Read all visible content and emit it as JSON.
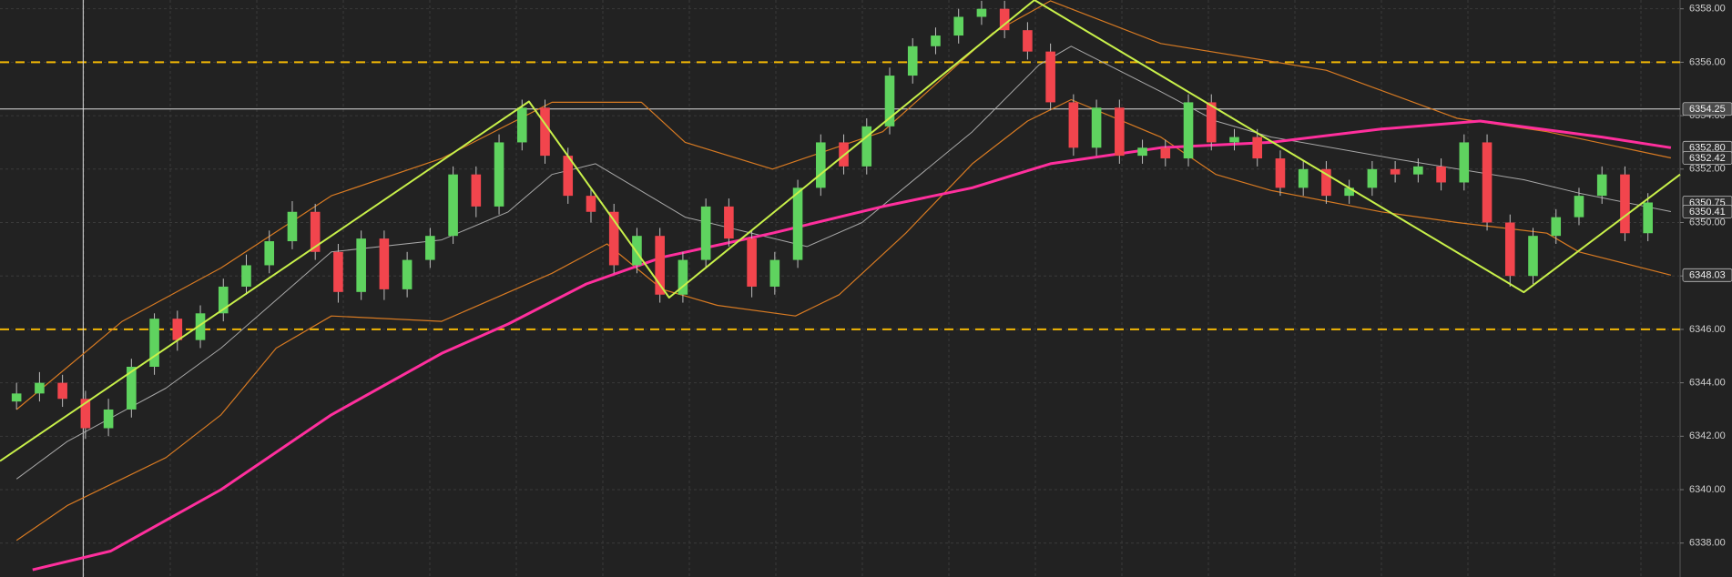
{
  "chart_data": {
    "type": "candlestick",
    "xlim": [
      -0.72,
      72.4
    ],
    "ylim": [
      6336.73,
      6358.33
    ],
    "yticks": [
      {
        "value": 6338,
        "label": "6338.00"
      },
      {
        "value": 6340,
        "label": "6340.00"
      },
      {
        "value": 6342,
        "label": "6342.00"
      },
      {
        "value": 6344,
        "label": "6344.00"
      },
      {
        "value": 6346,
        "label": "6346.00"
      },
      {
        "value": 6348,
        "label": "6348.00"
      },
      {
        "value": 6350,
        "label": "6350.00"
      },
      {
        "value": 6352,
        "label": "6352.00"
      },
      {
        "value": 6354,
        "label": "6354.00"
      },
      {
        "value": 6356,
        "label": "6356.00"
      },
      {
        "value": 6358,
        "label": "6358.00"
      }
    ],
    "grid": true,
    "up_color": "#5fd35f",
    "down_color": "#f2454d",
    "open": [
      6343.3,
      6343.6,
      6344.0,
      6343.4,
      6342.3,
      6343.0,
      6344.6,
      6346.4,
      6345.6,
      6346.6,
      6347.6,
      6348.4,
      6349.3,
      6350.4,
      6348.9,
      6347.4,
      6349.4,
      6347.5,
      6348.6,
      6349.5,
      6351.8,
      6350.6,
      6353.0,
      6354.3,
      6352.5,
      6351.0,
      6350.4,
      6348.4,
      6349.5,
      6347.3,
      6348.6,
      6350.6,
      6349.4,
      6347.6,
      6348.6,
      6351.3,
      6353.0,
      6352.1,
      6353.6,
      6355.5,
      6356.6,
      6357.0,
      6357.7,
      6358.0,
      6357.2,
      6356.4,
      6354.5,
      6352.8,
      6354.3,
      6352.5,
      6352.8,
      6352.4,
      6354.5,
      6353.0,
      6353.2,
      6352.4,
      6351.3,
      6352.0,
      6351.0,
      6351.3,
      6352.0,
      6351.8,
      6352.1,
      6351.5,
      6353.0,
      6350.0,
      6348.0,
      6349.5,
      6350.2,
      6351.0,
      6351.8,
      6349.6
    ],
    "high": [
      6344.0,
      6344.4,
      6344.3,
      6343.7,
      6343.4,
      6344.9,
      6346.6,
      6346.7,
      6346.9,
      6347.9,
      6348.8,
      6349.7,
      6350.8,
      6350.7,
      6349.2,
      6349.7,
      6349.7,
      6348.9,
      6349.8,
      6352.1,
      6352.1,
      6353.3,
      6354.6,
      6354.6,
      6352.8,
      6351.3,
      6350.7,
      6349.8,
      6349.8,
      6348.9,
      6350.9,
      6350.9,
      6349.7,
      6348.9,
      6351.6,
      6353.3,
      6353.3,
      6353.9,
      6355.8,
      6356.9,
      6357.3,
      6358.0,
      6358.3,
      6358.3,
      6357.5,
      6356.7,
      6354.8,
      6354.6,
      6354.6,
      6353.1,
      6353.1,
      6354.8,
      6354.8,
      6353.5,
      6353.5,
      6352.7,
      6352.3,
      6352.3,
      6351.6,
      6352.3,
      6352.3,
      6352.4,
      6352.4,
      6353.3,
      6353.3,
      6350.3,
      6349.8,
      6350.5,
      6351.3,
      6352.1,
      6352.1,
      6351.1
    ],
    "low": [
      6343.0,
      6343.3,
      6343.1,
      6341.9,
      6342.0,
      6342.7,
      6344.3,
      6345.2,
      6345.3,
      6346.3,
      6347.3,
      6348.1,
      6349.0,
      6348.6,
      6347.0,
      6347.1,
      6347.1,
      6347.2,
      6348.3,
      6349.2,
      6350.2,
      6350.3,
      6352.7,
      6352.2,
      6350.7,
      6350.0,
      6348.1,
      6348.1,
      6347.0,
      6347.0,
      6348.3,
      6349.1,
      6347.2,
      6347.3,
      6348.3,
      6351.0,
      6351.8,
      6351.8,
      6353.3,
      6355.2,
      6356.3,
      6356.7,
      6357.4,
      6356.9,
      6356.1,
      6354.2,
      6352.5,
      6352.5,
      6352.2,
      6352.2,
      6352.1,
      6352.1,
      6352.7,
      6352.7,
      6352.1,
      6351.0,
      6351.0,
      6350.7,
      6350.7,
      6351.0,
      6351.5,
      6351.5,
      6351.2,
      6351.2,
      6349.7,
      6347.6,
      6347.7,
      6349.2,
      6349.9,
      6350.7,
      6349.3,
      6349.3
    ],
    "close": [
      6343.6,
      6344.0,
      6343.4,
      6342.3,
      6343.0,
      6344.6,
      6346.4,
      6345.6,
      6346.6,
      6347.6,
      6348.4,
      6349.3,
      6350.4,
      6348.9,
      6347.4,
      6349.4,
      6347.5,
      6348.6,
      6349.5,
      6351.8,
      6350.6,
      6353.0,
      6354.3,
      6352.5,
      6351.0,
      6350.4,
      6348.4,
      6349.5,
      6347.3,
      6348.6,
      6350.6,
      6349.4,
      6347.6,
      6348.6,
      6351.3,
      6353.0,
      6352.1,
      6353.6,
      6355.5,
      6356.6,
      6357.0,
      6357.7,
      6358.0,
      6357.2,
      6356.4,
      6354.5,
      6352.8,
      6354.3,
      6352.5,
      6352.8,
      6352.4,
      6354.5,
      6353.0,
      6353.2,
      6352.4,
      6351.3,
      6352.0,
      6351.0,
      6351.3,
      6352.0,
      6351.8,
      6352.1,
      6351.5,
      6353.0,
      6350.0,
      6348.0,
      6349.5,
      6350.2,
      6351.0,
      6351.8,
      6349.6,
      6350.75
    ],
    "overlays": [
      {
        "color": "#d77a22",
        "x": [
          0,
          4.6,
          8.9,
          13.7,
          18.5,
          23.3,
          27.2,
          29.1,
          32.9,
          37.7,
          42.5,
          45.0,
          49.8,
          57.0,
          62.7,
          66.6,
          72.0
        ],
        "values": [
          6343.0,
          6346.3,
          6348.3,
          6351.0,
          6352.4,
          6354.5,
          6354.5,
          6353.0,
          6352.0,
          6353.4,
          6357.1,
          6358.3,
          6356.7,
          6355.7,
          6353.9,
          6353.4,
          6352.42
        ]
      },
      {
        "color": "#d77a22",
        "x": [
          0,
          2.2,
          6.5,
          8.9,
          11.3,
          13.7,
          18.5,
          23.3,
          25.7,
          28.1,
          30.5,
          33.9,
          35.8,
          38.7,
          41.6,
          44.0,
          45.9,
          49.8,
          52.2,
          54.6,
          59.4,
          62.7,
          66.6,
          68.0,
          72.0
        ],
        "values": [
          6338.1,
          6339.4,
          6341.2,
          6342.8,
          6345.3,
          6346.5,
          6346.3,
          6348.1,
          6349.2,
          6347.5,
          6346.9,
          6346.5,
          6347.3,
          6349.6,
          6352.2,
          6353.8,
          6354.6,
          6353.2,
          6351.8,
          6351.2,
          6350.4,
          6350.0,
          6349.6,
          6348.9,
          6348.03
        ]
      },
      {
        "color": "#a8a8a8",
        "x": [
          0,
          2.2,
          6.5,
          8.9,
          11.3,
          13.7,
          18.5,
          21.4,
          23.3,
          25.2,
          29.1,
          34.4,
          36.8,
          41.6,
          44.5,
          45.9,
          49.8,
          52.2,
          54.6,
          59.9,
          65.6,
          68.0,
          72.0
        ],
        "values": [
          6340.4,
          6341.8,
          6343.8,
          6345.3,
          6347.1,
          6348.9,
          6349.35,
          6350.4,
          6351.8,
          6352.2,
          6350.2,
          6349.1,
          6350.0,
          6353.4,
          6355.9,
          6356.6,
          6354.9,
          6353.8,
          6353.2,
          6352.4,
          6351.6,
          6351.1,
          6350.41
        ]
      },
      {
        "color": "#ff2f9d",
        "x": [
          0.7,
          4.1,
          8.9,
          13.7,
          18.5,
          21.4,
          24.8,
          28.1,
          32.9,
          37.7,
          41.6,
          45.0,
          49.8,
          54.6,
          59.4,
          63.7,
          69.0,
          72.0
        ],
        "values": [
          6337.0,
          6337.7,
          6340.0,
          6342.8,
          6345.1,
          6346.2,
          6347.7,
          6348.7,
          6349.6,
          6350.6,
          6351.3,
          6352.2,
          6352.8,
          6353.0,
          6353.5,
          6353.8,
          6353.2,
          6352.8
        ]
      }
    ],
    "zigzag": {
      "color": "#c8f04a",
      "x": [
        -0.72,
        22.3,
        28.4,
        44.3,
        65.6,
        72.4
      ],
      "values": [
        6341.07,
        6354.53,
        6347.19,
        6358.33,
        6347.39,
        6351.8
      ]
    },
    "levels": [
      6356,
      6346
    ],
    "level_color": "#f2b705",
    "crosshair_x": 2.9,
    "price_tags": [
      6354.25,
      {
        "value": 6352.8,
        "label": "6352.80"
      },
      6352.42,
      6350.75,
      6350.41,
      6348.03
    ]
  }
}
